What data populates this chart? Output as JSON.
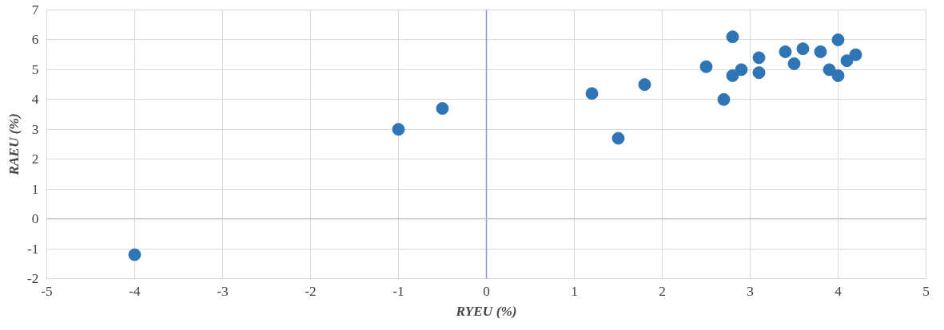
{
  "chart_data": {
    "type": "scatter",
    "xlabel": "RYEU (%)",
    "ylabel": "RAEU (%)",
    "x": [
      -4,
      -1,
      -0.5,
      1.2,
      1.5,
      1.8,
      2.5,
      2.7,
      2.8,
      2.8,
      2.9,
      3.1,
      3.1,
      3.4,
      3.5,
      3.6,
      3.8,
      3.9,
      4.0,
      4.0,
      4.1,
      4.2
    ],
    "series": [
      {
        "color": "#2e75b6",
        "values": [
          -1.2,
          3.0,
          3.7,
          4.2,
          2.7,
          4.5,
          5.1,
          4.0,
          6.1,
          4.8,
          5.0,
          5.4,
          4.9,
          5.6,
          5.2,
          5.7,
          5.6,
          5.0,
          6.0,
          4.8,
          5.3,
          5.5
        ]
      }
    ],
    "xlim": [
      -5,
      5
    ],
    "ylim": [
      -2,
      7
    ],
    "xticks": [
      -5,
      -4,
      -3,
      -2,
      -1,
      0,
      1,
      2,
      3,
      4,
      5
    ],
    "yticks": [
      -2,
      -1,
      0,
      1,
      2,
      3,
      4,
      5,
      6,
      7
    ],
    "grid": true,
    "marker": "circle",
    "ref_lines": [
      {
        "axis": "x",
        "value": 0,
        "color": "#8497c8"
      },
      {
        "axis": "y",
        "value": 0,
        "color": "#bfbfbf"
      }
    ]
  }
}
